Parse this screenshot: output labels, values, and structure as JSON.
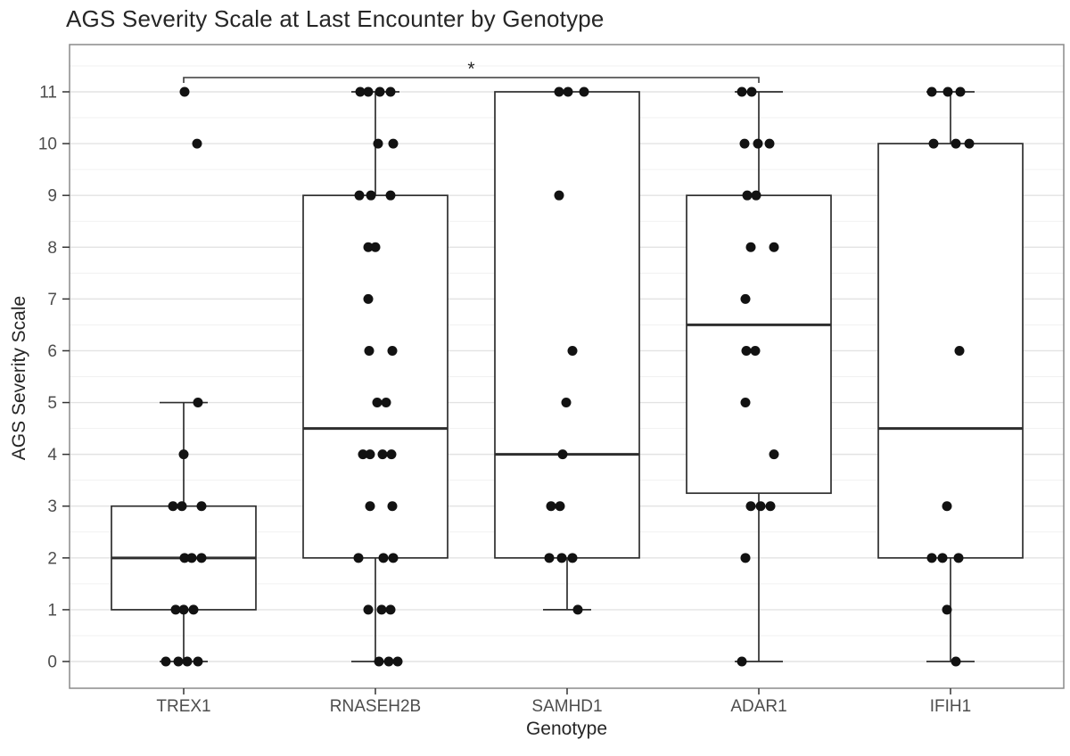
{
  "figure": {
    "title": "AGS Severity Scale at Last Encounter by Genotype",
    "x_axis_title": "Genotype",
    "y_axis_title": "AGS Severity Scale"
  },
  "chart_data": {
    "type": "boxplot",
    "title": "AGS Severity Scale at Last Encounter by Genotype",
    "xlabel": "Genotype",
    "ylabel": "AGS Severity Scale",
    "categories": [
      "TREX1",
      "RNASEH2B",
      "SAMHD1",
      "ADAR1",
      "IFIH1"
    ],
    "yticks": [
      0,
      1,
      2,
      3,
      4,
      5,
      6,
      7,
      8,
      9,
      10,
      11
    ],
    "ylim": [
      0,
      11.6
    ],
    "grid": "horizontal major + minor, light gray",
    "legend": "none",
    "genotypes": [
      {
        "name": "TREX1",
        "box": {
          "whisker_low": 0,
          "q1": 1,
          "median": 2,
          "q3": 3,
          "whisker_high": 5
        },
        "points": [
          [
            11,
            1
          ],
          [
            10,
            15
          ],
          [
            5,
            16
          ],
          [
            4,
            0
          ],
          [
            3,
            -12
          ],
          [
            3,
            -2
          ],
          [
            3,
            20
          ],
          [
            2,
            1
          ],
          [
            2,
            9
          ],
          [
            2,
            20
          ],
          [
            1,
            -9
          ],
          [
            1,
            0
          ],
          [
            1,
            11
          ],
          [
            0,
            -20
          ],
          [
            0,
            -6
          ],
          [
            0,
            4
          ],
          [
            0,
            16
          ]
        ]
      },
      {
        "name": "RNASEH2B",
        "box": {
          "whisker_low": 0,
          "q1": 2,
          "median": 4.5,
          "q3": 9,
          "whisker_high": 11
        },
        "points": [
          [
            11,
            -17
          ],
          [
            11,
            -8
          ],
          [
            11,
            5
          ],
          [
            11,
            17
          ],
          [
            10,
            3
          ],
          [
            10,
            20
          ],
          [
            9,
            -18
          ],
          [
            9,
            -5
          ],
          [
            9,
            17
          ],
          [
            8,
            -8
          ],
          [
            8,
            0
          ],
          [
            7,
            -8
          ],
          [
            6,
            -7
          ],
          [
            6,
            19
          ],
          [
            5,
            2
          ],
          [
            5,
            12
          ],
          [
            4,
            -14
          ],
          [
            4,
            -6
          ],
          [
            4,
            8
          ],
          [
            4,
            18
          ],
          [
            3,
            -6
          ],
          [
            3,
            19
          ],
          [
            2,
            -19
          ],
          [
            2,
            9
          ],
          [
            2,
            20
          ],
          [
            1,
            -8
          ],
          [
            1,
            7
          ],
          [
            1,
            17
          ],
          [
            0,
            4
          ],
          [
            0,
            15
          ],
          [
            0,
            25
          ]
        ]
      },
      {
        "name": "SAMHD1",
        "box": {
          "whisker_low": 1,
          "q1": 2,
          "median": 4,
          "q3": 11,
          "whisker_high": 11
        },
        "points": [
          [
            11,
            -9
          ],
          [
            11,
            1
          ],
          [
            11,
            19
          ],
          [
            9,
            -9
          ],
          [
            6,
            6
          ],
          [
            5,
            -1
          ],
          [
            4,
            -5
          ],
          [
            3,
            -18
          ],
          [
            3,
            -8
          ],
          [
            2,
            -20
          ],
          [
            2,
            -6
          ],
          [
            2,
            6
          ],
          [
            1,
            12
          ]
        ]
      },
      {
        "name": "ADAR1",
        "box": {
          "whisker_low": 0,
          "q1": 3.25,
          "median": 6.5,
          "q3": 9,
          "whisker_high": 11
        },
        "points": [
          [
            11,
            -19
          ],
          [
            11,
            -8
          ],
          [
            10,
            -16
          ],
          [
            10,
            -1
          ],
          [
            10,
            12
          ],
          [
            9,
            -13
          ],
          [
            9,
            -3
          ],
          [
            8,
            -9
          ],
          [
            8,
            17
          ],
          [
            7,
            -15
          ],
          [
            6,
            -14
          ],
          [
            6,
            -4
          ],
          [
            5,
            -15
          ],
          [
            4,
            17
          ],
          [
            3,
            -9
          ],
          [
            3,
            2
          ],
          [
            3,
            13
          ],
          [
            2,
            -15
          ],
          [
            0,
            -19
          ]
        ]
      },
      {
        "name": "IFIH1",
        "box": {
          "whisker_low": 0,
          "q1": 2,
          "median": 4.5,
          "q3": 10,
          "whisker_high": 11
        },
        "points": [
          [
            11,
            -21
          ],
          [
            11,
            -3
          ],
          [
            11,
            11
          ],
          [
            10,
            -19
          ],
          [
            10,
            6
          ],
          [
            10,
            21
          ],
          [
            6,
            10
          ],
          [
            3,
            -4
          ],
          [
            2,
            -21
          ],
          [
            2,
            -9
          ],
          [
            2,
            9
          ],
          [
            1,
            -4
          ],
          [
            0,
            6
          ]
        ]
      }
    ],
    "significance_bracket": {
      "from": "TREX1",
      "to": "ADAR1",
      "label": "*"
    },
    "colors": {
      "background": "#ffffff",
      "panel_border": "#8a8a8a",
      "grid_major": "#e3e3e3",
      "grid_minor": "#f1f1f1",
      "box_stroke": "#2e2e2e",
      "box_fill": "#ffffff",
      "point_fill": "#121212",
      "tick_mark": "#333333",
      "tick_label": "#4d4d4d",
      "bracket": "#3a3a3a"
    }
  }
}
